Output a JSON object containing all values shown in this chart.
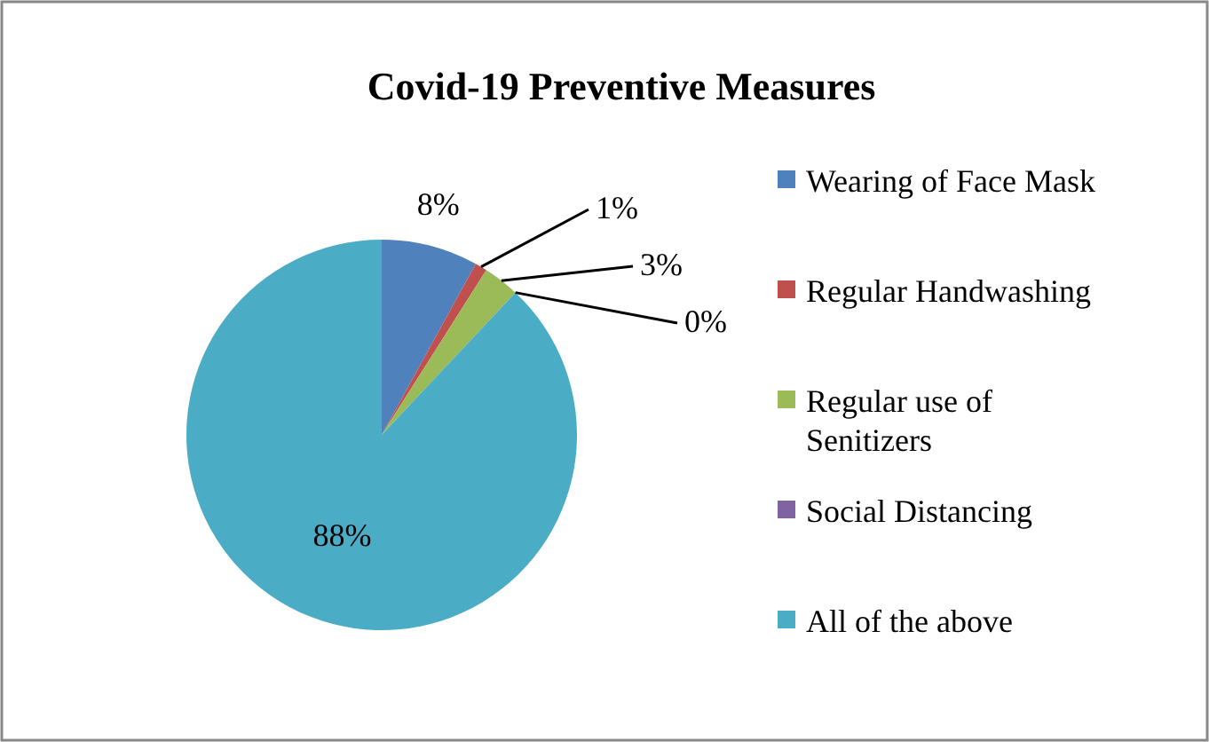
{
  "chart_data": {
    "type": "pie",
    "title": "Covid-19 Preventive Measures",
    "categories": [
      "Wearing of Face Mask",
      "Regular Handwashing",
      "Regular use of Senitizers",
      "Social Distancing",
      "All of the above"
    ],
    "values": [
      8,
      1,
      3,
      0,
      88
    ],
    "colors": [
      "#4f81bd",
      "#c0504d",
      "#9bbb59",
      "#8064a2",
      "#4bacc6"
    ],
    "value_labels": [
      "8%",
      "1%",
      "3%",
      "0%",
      "88%"
    ],
    "legend": "right"
  }
}
